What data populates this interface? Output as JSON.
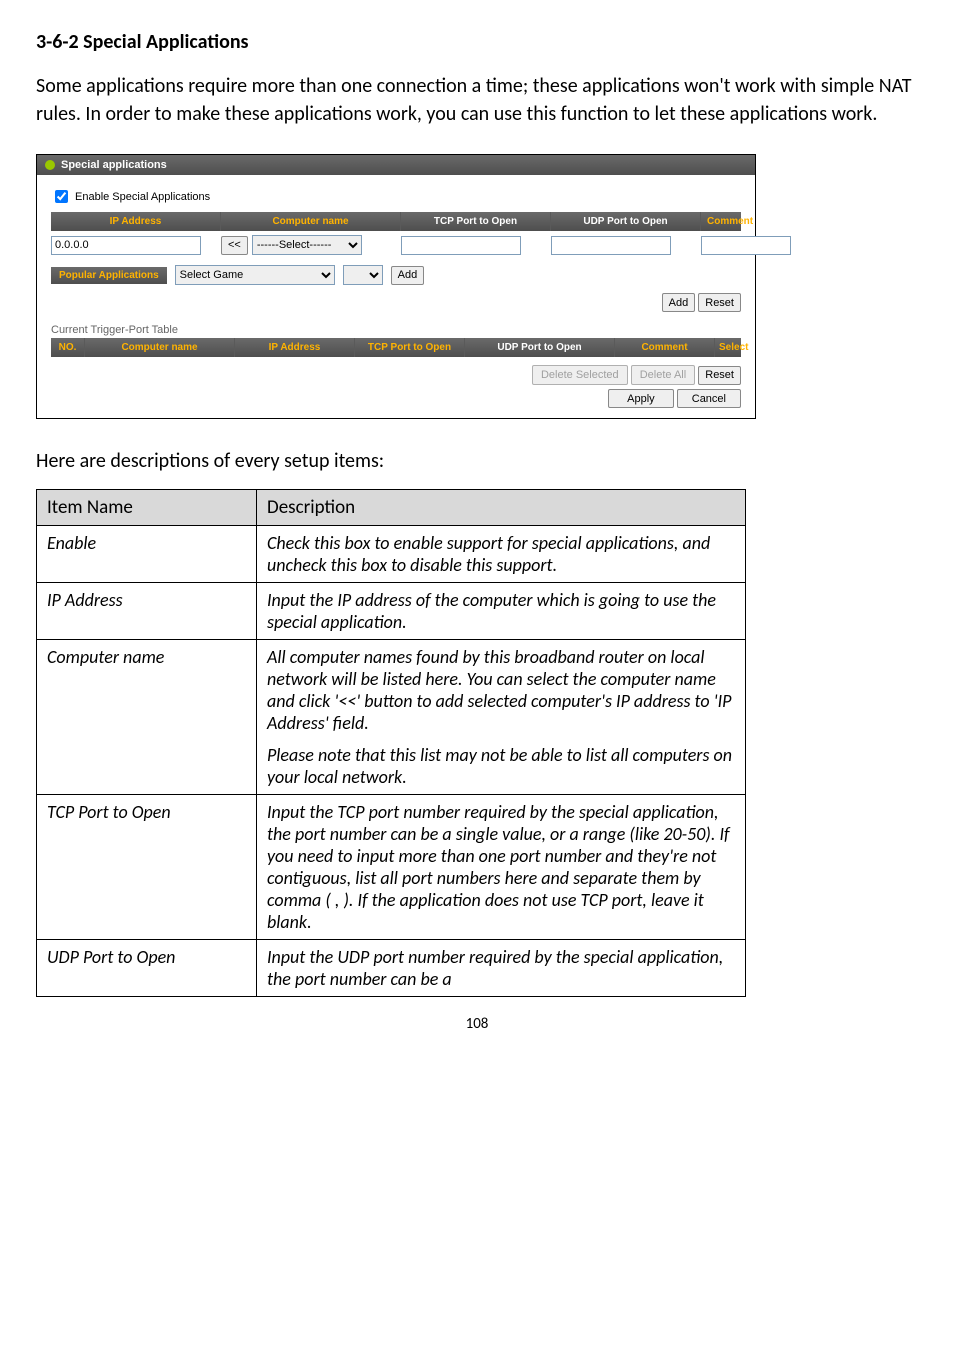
{
  "heading": "3-6-2 Special Applications",
  "intro": "Some applications require more than one connection a time; these applications won't work with simple NAT rules. In order to make these applications work, you can use this function to let these applications work.",
  "panel": {
    "title": "Special applications",
    "enable_chk_label": "Enable Special Applications",
    "enable_checked": true,
    "grid_headers": {
      "ip": "IP Address",
      "comp": "Computer name",
      "tcp": "TCP Port to Open",
      "udp": "UDP Port to Open",
      "comment": "Comment"
    },
    "row": {
      "ip_value": "0.0.0.0",
      "lshift_btn": "<<",
      "select_text": "------Select------"
    },
    "pop_label": "Popular Applications",
    "pop_select": "Select Game",
    "add_btn": "Add",
    "reset_btn": "Reset",
    "trig_title": "Current Trigger-Port Table",
    "trig_headers": {
      "no": "NO.",
      "comp": "Computer name",
      "ip": "IP Address",
      "tcp": "TCP Port to Open",
      "udp": "UDP Port to Open",
      "comment": "Comment",
      "select": "Select"
    },
    "footer_btns": {
      "del_sel": "Delete Selected",
      "del_all": "Delete All",
      "reset": "Reset",
      "apply": "Apply",
      "cancel": "Cancel"
    }
  },
  "desc_intro": "Here are descriptions of every setup items:",
  "table": {
    "head_item": "Item Name",
    "head_desc": "Description",
    "rows": [
      {
        "name": "Enable",
        "desc": [
          "Check this box to enable support for special applications, and uncheck this box to disable this support."
        ]
      },
      {
        "name": "IP Address",
        "desc": [
          "Input the IP address of the computer which is going to use the special application."
        ]
      },
      {
        "name": "Computer name",
        "desc": [
          "All computer names found by this broadband router on local network will be listed here. You can select the computer name and click '<<' button to add selected computer's IP address to 'IP Address' field.",
          "Please note that this list may not be able to list all computers on your local network."
        ]
      },
      {
        "name": "TCP Port to Open",
        "desc": [
          "Input the TCP port number required by the special application, the port number can be a single value, or a range (like 20-50). If you need to input more than one port number and they're not contiguous, list all port numbers here and separate them by comma ( , ). If the application does not use TCP port, leave it blank."
        ]
      },
      {
        "name": "UDP Port to Open",
        "desc": [
          "Input the UDP port number required by the special application, the port number can be a"
        ]
      }
    ]
  },
  "page_number": "108"
}
